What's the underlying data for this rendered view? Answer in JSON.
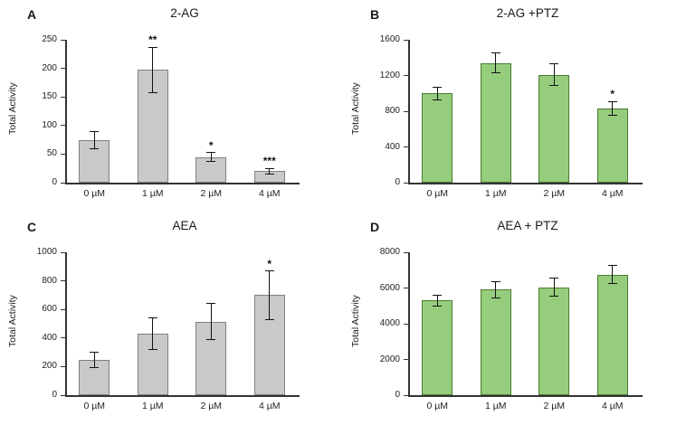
{
  "figure": {
    "ylabel": "Total Activity",
    "axis_color": "#333333",
    "error_bar_color": "#111111"
  },
  "chart_data": [
    {
      "panel": "A",
      "type": "bar",
      "title": "2-AG",
      "ylabel": "Total Activity",
      "categories": [
        "0 µM",
        "1 µM",
        "2 µM",
        "4 µM"
      ],
      "values": [
        75,
        197,
        45,
        20
      ],
      "errors": [
        15,
        40,
        8,
        5
      ],
      "significance": [
        "",
        "**",
        "*",
        "***"
      ],
      "ylim": [
        0,
        250
      ],
      "yticks": [
        0,
        50,
        100,
        150,
        200,
        250
      ],
      "bar_fill": "#c9c9c9",
      "bar_border": "#7f7f7f",
      "legend": "none",
      "grid": "off"
    },
    {
      "panel": "B",
      "type": "bar",
      "title": "2-AG +PTZ",
      "ylabel": "Total Activity",
      "categories": [
        "0 µM",
        "1 µM",
        "2 µM",
        "4 µM"
      ],
      "values": [
        1000,
        1340,
        1210,
        830
      ],
      "errors": [
        70,
        110,
        120,
        80
      ],
      "significance": [
        "",
        "",
        "",
        "*"
      ],
      "ylim": [
        0,
        1600
      ],
      "yticks": [
        0,
        400,
        800,
        1200,
        1600
      ],
      "bar_fill": "#95cd7d",
      "bar_border": "#4a7a30",
      "legend": "none",
      "grid": "off"
    },
    {
      "panel": "C",
      "type": "bar",
      "title": "AEA",
      "ylabel": "Total Activity",
      "categories": [
        "0 µM",
        "1 µM",
        "2 µM",
        "4 µM"
      ],
      "values": [
        245,
        430,
        515,
        700
      ],
      "errors": [
        55,
        110,
        125,
        170
      ],
      "significance": [
        "",
        "",
        "",
        "*"
      ],
      "ylim": [
        0,
        1000
      ],
      "yticks": [
        0,
        200,
        400,
        600,
        800,
        1000
      ],
      "bar_fill": "#c9c9c9",
      "bar_border": "#7f7f7f",
      "legend": "none",
      "grid": "off"
    },
    {
      "panel": "D",
      "type": "bar",
      "title": "AEA + PTZ",
      "ylabel": "Total Activity",
      "categories": [
        "0 µM",
        "1 µM",
        "2 µM",
        "4 µM"
      ],
      "values": [
        5300,
        5900,
        6050,
        6750
      ],
      "errors": [
        300,
        450,
        500,
        500
      ],
      "significance": [
        "",
        "",
        "",
        ""
      ],
      "ylim": [
        0,
        8000
      ],
      "yticks": [
        0,
        2000,
        4000,
        6000,
        8000
      ],
      "bar_fill": "#95cd7d",
      "bar_border": "#4a7a30",
      "legend": "none",
      "grid": "off"
    }
  ]
}
